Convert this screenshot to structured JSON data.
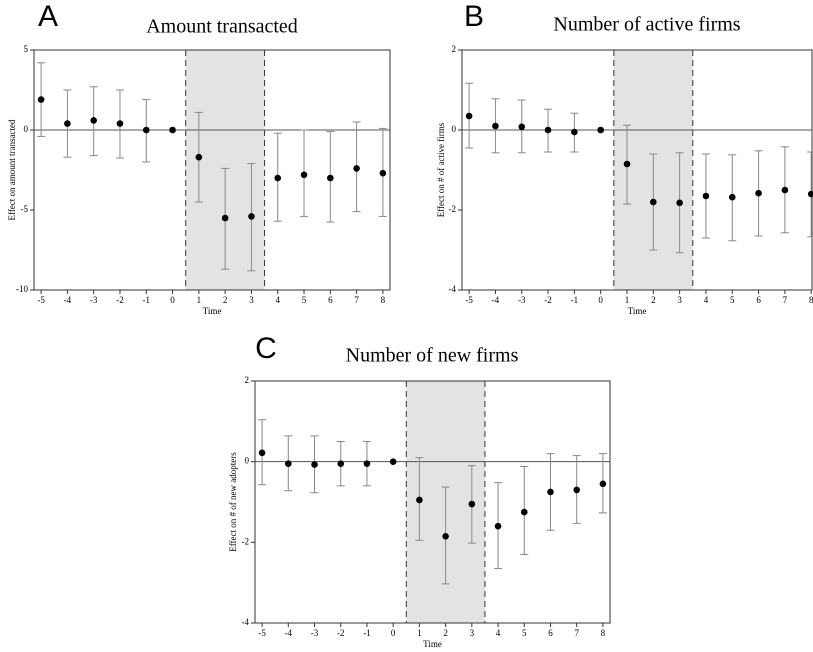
{
  "chart_data": [
    {
      "type": "scatter",
      "panel_label": "A",
      "title": "Amount transacted",
      "x_label": "Time",
      "y_label": "Effect on amount transacted",
      "x": [
        -5,
        -4,
        -3,
        -2,
        -1,
        0,
        1,
        2,
        3,
        4,
        5,
        6,
        7,
        8
      ],
      "xlim": [
        -5.27,
        8.27
      ],
      "xticks": [
        -5,
        -4,
        -3,
        -2,
        -1,
        0,
        1,
        2,
        3,
        4,
        5,
        6,
        7,
        8
      ],
      "ylim": [
        -10,
        5
      ],
      "yticks": [
        5,
        0,
        -5,
        -10
      ],
      "yline": 0,
      "shade": [
        0.5,
        3.5
      ],
      "series": [
        {
          "color": "#000000",
          "error_color": "#888888",
          "values": [
            1.9,
            0.4,
            0.6,
            0.4,
            0,
            0,
            -1.7,
            -5.5,
            -5.4,
            -3,
            -2.8,
            -3,
            -2.4,
            -2.7
          ],
          "upper": [
            4.2,
            2.5,
            2.7,
            2.5,
            1.9,
            null,
            1.1,
            -2.4,
            -2.1,
            -0.2,
            0,
            -0.1,
            0.5,
            0.1
          ],
          "lower": [
            -0.4,
            -1.7,
            -1.6,
            -1.75,
            -2,
            null,
            -4.5,
            -8.7,
            -8.8,
            -5.7,
            -5.4,
            -5.75,
            -5.1,
            -5.4
          ]
        }
      ]
    },
    {
      "type": "scatter",
      "panel_label": "B",
      "title": "Number of active firms",
      "x_label": "Time",
      "y_label": "Effect on # of active firms",
      "x": [
        -5,
        -4,
        -3,
        -2,
        -1,
        0,
        1,
        2,
        3,
        4,
        5,
        6,
        7,
        8
      ],
      "xlim": [
        -5.27,
        8.03
      ],
      "xticks": [
        -5,
        -4,
        -3,
        -2,
        -1,
        0,
        1,
        2,
        3,
        4,
        5,
        6,
        7,
        8
      ],
      "ylim": [
        -4,
        2
      ],
      "yticks": [
        2,
        0,
        -2,
        -4
      ],
      "yline": 0,
      "shade": [
        0.5,
        3.5
      ],
      "series": [
        {
          "color": "#000000",
          "error_color": "#888888",
          "values": [
            0.35,
            0.1,
            0.08,
            0,
            -0.05,
            0,
            -0.85,
            -1.8,
            -1.82,
            -1.65,
            -1.68,
            -1.58,
            -1.5,
            -1.6
          ],
          "upper": [
            1.17,
            0.78,
            0.75,
            0.52,
            0.42,
            null,
            0.12,
            -0.6,
            -0.57,
            -0.6,
            -0.62,
            -0.52,
            -0.42,
            -0.55
          ],
          "lower": [
            -0.45,
            -0.57,
            -0.57,
            -0.55,
            -0.55,
            null,
            -1.85,
            -3,
            -3.07,
            -2.7,
            -2.77,
            -2.65,
            -2.57,
            -2.67
          ]
        }
      ]
    },
    {
      "type": "scatter",
      "panel_label": "C",
      "title": "Number of new firms",
      "x_label": "Time",
      "y_label": "Effect on # of new adopters",
      "x": [
        -5,
        -4,
        -3,
        -2,
        -1,
        0,
        1,
        2,
        3,
        4,
        5,
        6,
        7,
        8
      ],
      "xlim": [
        -5.27,
        8.27
      ],
      "xticks": [
        -5,
        -4,
        -3,
        -2,
        -1,
        0,
        1,
        2,
        3,
        4,
        5,
        6,
        7,
        8
      ],
      "ylim": [
        -4,
        2
      ],
      "yticks": [
        2,
        0,
        -2,
        -4
      ],
      "yline": 0,
      "shade": [
        0.5,
        3.5
      ],
      "series": [
        {
          "color": "#000000",
          "error_color": "#888888",
          "values": [
            0.22,
            -0.05,
            -0.07,
            -0.05,
            -0.05,
            0,
            -0.95,
            -1.85,
            -1.05,
            -1.6,
            -1.25,
            -0.75,
            -0.7,
            -0.55
          ],
          "upper": [
            1.04,
            0.64,
            0.64,
            0.5,
            0.5,
            null,
            0.1,
            -0.63,
            -0.1,
            -0.52,
            -0.12,
            0.2,
            0.15,
            0.2
          ],
          "lower": [
            -0.57,
            -0.72,
            -0.77,
            -0.6,
            -0.6,
            null,
            -1.95,
            -3.03,
            -2.02,
            -2.65,
            -2.3,
            -1.7,
            -1.53,
            -1.27
          ]
        }
      ]
    }
  ]
}
